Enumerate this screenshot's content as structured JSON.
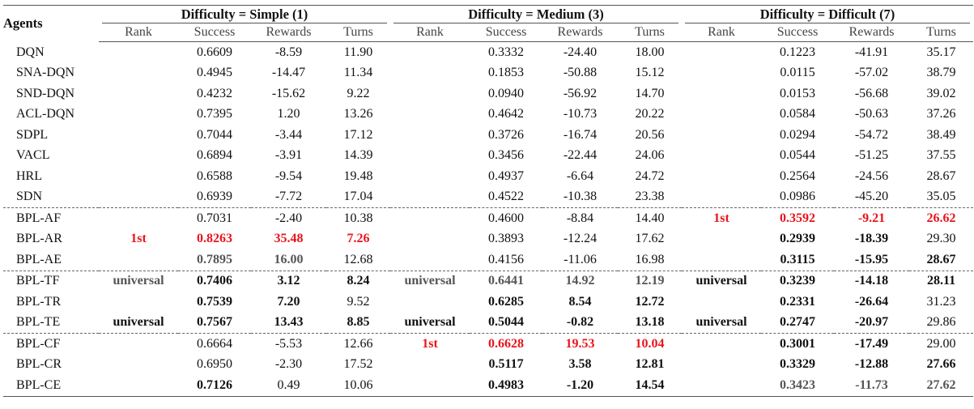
{
  "header": {
    "agents": "Agents",
    "groups": [
      "Difficulty = Simple (1)",
      "Difficulty = Medium (3)",
      "Difficulty = Difficult (7)"
    ],
    "subcolumns": [
      "Rank",
      "Success",
      "Rewards",
      "Turns"
    ]
  },
  "emphasis_colors": {
    "best": "#e8141c",
    "bold": "#111111",
    "secondary": "#555555"
  },
  "rows": [
    {
      "agent": "DQN",
      "cells": [
        "",
        "0.6609",
        "-8.59",
        "11.90",
        "",
        "0.3332",
        "-24.40",
        "18.00",
        "",
        "0.1223",
        "-41.91",
        "35.17"
      ],
      "style": "nnnnnnnnnnnn"
    },
    {
      "agent": "SNA-DQN",
      "cells": [
        "",
        "0.4945",
        "-14.47",
        "11.34",
        "",
        "0.1853",
        "-50.88",
        "15.12",
        "",
        "0.0115",
        "-57.02",
        "38.79"
      ],
      "style": "nnnnnnnnnnnn"
    },
    {
      "agent": "SND-DQN",
      "cells": [
        "",
        "0.4232",
        "-15.62",
        "9.22",
        "",
        "0.0940",
        "-56.92",
        "14.70",
        "",
        "0.0153",
        "-56.68",
        "39.02"
      ],
      "style": "nnnnnnnnnnnn"
    },
    {
      "agent": "ACL-DQN",
      "cells": [
        "",
        "0.7395",
        "1.20",
        "13.26",
        "",
        "0.4642",
        "-10.73",
        "20.22",
        "",
        "0.0584",
        "-50.63",
        "37.26"
      ],
      "style": "nnnnnnnnnnnn"
    },
    {
      "agent": "SDPL",
      "cells": [
        "",
        "0.7044",
        "-3.44",
        "17.12",
        "",
        "0.3726",
        "-16.74",
        "20.56",
        "",
        "0.0294",
        "-54.72",
        "38.49"
      ],
      "style": "nnnnnnnnnnnn"
    },
    {
      "agent": "VACL",
      "cells": [
        "",
        "0.6894",
        "-3.91",
        "14.39",
        "",
        "0.3456",
        "-22.44",
        "24.06",
        "",
        "0.0544",
        "-51.25",
        "37.55"
      ],
      "style": "nnnnnnnnnnnn"
    },
    {
      "agent": "HRL",
      "cells": [
        "",
        "0.6588",
        "-9.54",
        "19.48",
        "",
        "0.4937",
        "-6.64",
        "24.72",
        "",
        "0.2564",
        "-24.56",
        "28.67"
      ],
      "style": "nnnnnnnnnnnn"
    },
    {
      "agent": "SDN",
      "cells": [
        "",
        "0.6939",
        "-7.72",
        "17.04",
        "",
        "0.4522",
        "-10.38",
        "23.38",
        "",
        "0.0986",
        "-45.20",
        "35.05"
      ],
      "style": "nnnnnnnnnnnn"
    },
    {
      "agent": "BPL-AF",
      "cells": [
        "",
        "0.7031",
        "-2.40",
        "10.38",
        "",
        "0.4600",
        "-8.84",
        "14.40",
        "1st",
        "0.3592",
        "-9.21",
        "26.62"
      ],
      "style": "nnnnnnnnrrrr",
      "dash": true
    },
    {
      "agent": "BPL-AR",
      "cells": [
        "1st",
        "0.8263",
        "35.48",
        "7.26",
        "",
        "0.3893",
        "-12.24",
        "17.62",
        "",
        "0.2939",
        "-18.39",
        "29.30"
      ],
      "style": "rrrrnnnnnbbn"
    },
    {
      "agent": "BPL-AE",
      "cells": [
        "",
        "0.7895",
        "16.00",
        "12.68",
        "",
        "0.4156",
        "-11.06",
        "16.98",
        "",
        "0.3115",
        "-15.95",
        "28.67"
      ],
      "style": "nggnnnnnnbbb"
    },
    {
      "agent": "BPL-TF",
      "cells": [
        "universal",
        "0.7406",
        "3.12",
        "8.24",
        "universal",
        "0.6441",
        "14.92",
        "12.19",
        "universal",
        "0.3239",
        "-14.18",
        "28.11"
      ],
      "style": "gbbbggggbbbb",
      "dash": true
    },
    {
      "agent": "BPL-TR",
      "cells": [
        "",
        "0.7539",
        "7.20",
        "9.52",
        "",
        "0.6285",
        "8.54",
        "12.72",
        "",
        "0.2331",
        "-26.64",
        "31.23"
      ],
      "style": "nbbnnbbbnbbn"
    },
    {
      "agent": "BPL-TE",
      "cells": [
        "universal",
        "0.7567",
        "13.43",
        "8.85",
        "universal",
        "0.5044",
        "-0.82",
        "13.18",
        "universal",
        "0.2747",
        "-20.97",
        "29.86"
      ],
      "style": "bbbbbbbbbbbn"
    },
    {
      "agent": "BPL-CF",
      "cells": [
        "",
        "0.6664",
        "-5.53",
        "12.66",
        "1st",
        "0.6628",
        "19.53",
        "10.04",
        "",
        "0.3001",
        "-17.49",
        "29.00"
      ],
      "style": "nnnnrrrrnbbn",
      "dash": true
    },
    {
      "agent": "BPL-CR",
      "cells": [
        "",
        "0.6950",
        "-2.30",
        "17.52",
        "",
        "0.5117",
        "3.58",
        "12.81",
        "",
        "0.3329",
        "-12.88",
        "27.66"
      ],
      "style": "nnnnnbbbnbbb"
    },
    {
      "agent": "BPL-CE",
      "cells": [
        "",
        "0.7126",
        "0.49",
        "10.06",
        "",
        "0.4983",
        "-1.20",
        "14.54",
        "",
        "0.3423",
        "-11.73",
        "27.62"
      ],
      "style": "nbnnnbbbnggg"
    }
  ]
}
